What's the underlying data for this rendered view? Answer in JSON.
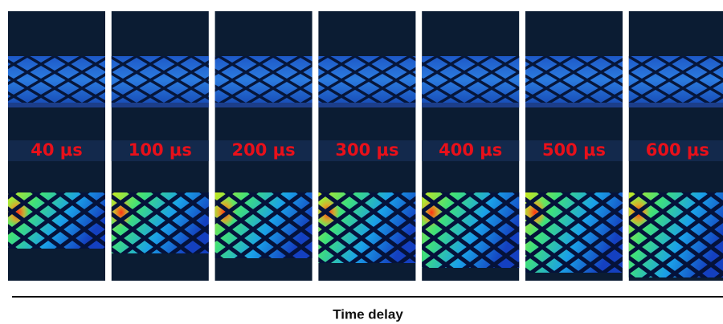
{
  "panels": [
    {
      "label": "40 μs"
    },
    {
      "label": "100 μs"
    },
    {
      "label": "200 μs"
    },
    {
      "label": "300 μs"
    },
    {
      "label": "400 μs"
    },
    {
      "label": "500 μs"
    },
    {
      "label": "600 μs"
    }
  ],
  "axis_label": "Time delay"
}
